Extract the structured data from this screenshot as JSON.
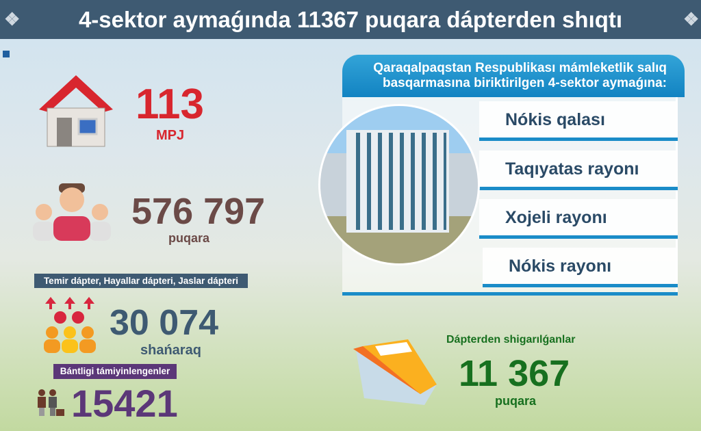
{
  "header": {
    "title": "4-sektor aymaǵında 11367 puqara dápterden shıqtı"
  },
  "stats": {
    "mpj": {
      "value": "113",
      "unit": "MPJ",
      "color": "#d8262e"
    },
    "population": {
      "value": "576 797",
      "unit": "puqara",
      "color": "#6b4a47"
    },
    "registers": {
      "label": "Temir dápter, Hayallar dápteri, Jaslar dápteri",
      "value": "30 074",
      "unit": "shańaraq",
      "color": "#3e5a72"
    },
    "employment": {
      "label": "Bántligi támiyinlengenler",
      "value": "15421",
      "color": "#5b3778"
    },
    "removed": {
      "label": "Dápterden shigarılǵanlar",
      "value": "11 367",
      "unit": "puqara",
      "color": "#17701f"
    }
  },
  "panel": {
    "title": "Qaraqalpaqstan Respublikası  mámleketlik salıq basqarmasına biriktirilgen 4-sektor aymaǵına:",
    "items": [
      "Nókis qalası",
      "Taqıyatas rayonı",
      "Xojeli rayonı",
      "Nókis rayonı"
    ]
  }
}
